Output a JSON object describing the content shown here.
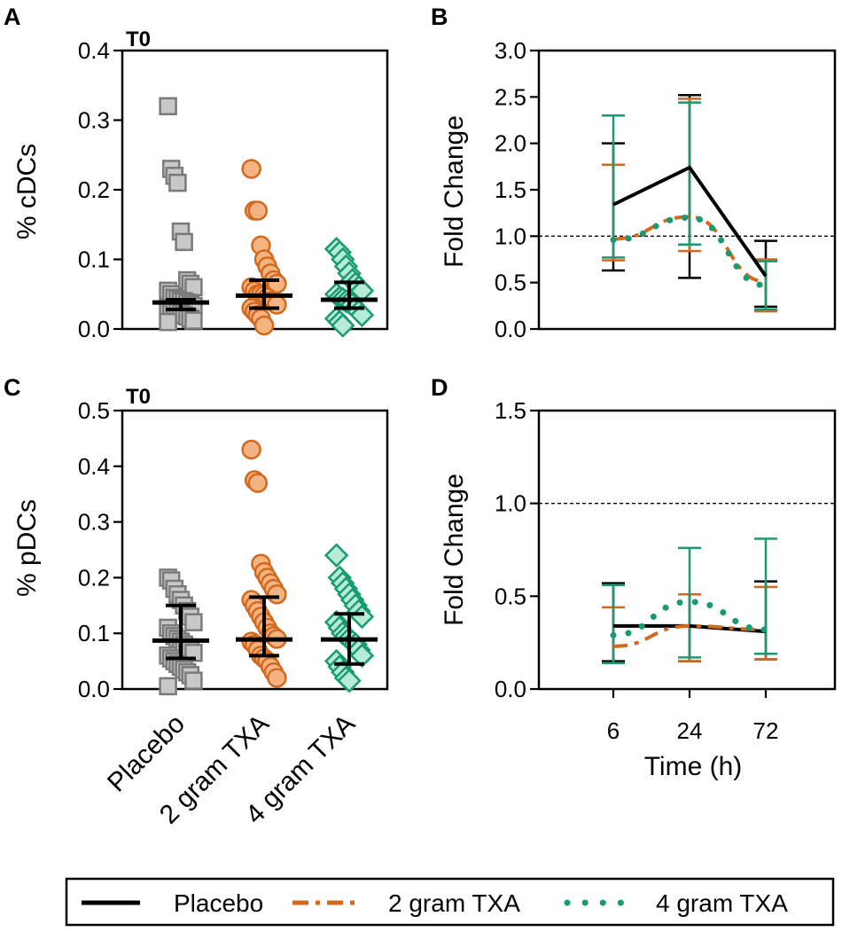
{
  "colors": {
    "placebo": "#000000",
    "placebo_fill": "#c8c8c8",
    "placebo_stroke": "#7a7a7a",
    "txa2": "#d2691e",
    "txa2_fill": "#f4b482",
    "txa4": "#1a9a73",
    "txa4_fill": "#b6ebd6"
  },
  "legend": {
    "items": [
      {
        "label": "Placebo",
        "style": "solid"
      },
      {
        "label": "2 gram TXA",
        "style": "dashed"
      },
      {
        "label": "4 gram TXA",
        "style": "dotted"
      }
    ]
  },
  "chart_data": [
    {
      "panel": "A",
      "type": "scatter",
      "annotation": "T0",
      "ylabel": "% cDCs",
      "ylim": [
        0,
        0.4
      ],
      "yticks": [
        0.0,
        0.1,
        0.2,
        0.3,
        0.4
      ],
      "ytick_labels": [
        "0.0",
        "0.1",
        "0.2",
        "0.3",
        "0.4"
      ],
      "categories": [
        "Placebo",
        "2 gram TXA",
        "4 gram TXA"
      ],
      "series": [
        {
          "name": "Placebo",
          "marker": "square",
          "median": 0.038,
          "err_low": 0.028,
          "err_high": 0.042,
          "points": [
            0.32,
            0.23,
            0.22,
            0.21,
            0.14,
            0.125,
            0.07,
            0.065,
            0.06,
            0.055,
            0.05,
            0.045,
            0.043,
            0.04,
            0.04,
            0.038,
            0.035,
            0.033,
            0.03,
            0.03,
            0.028,
            0.025,
            0.022,
            0.02,
            0.018,
            0.015,
            0.012,
            0.01
          ]
        },
        {
          "name": "2 gram TXA",
          "marker": "circle",
          "median": 0.048,
          "err_low": 0.03,
          "err_high": 0.07,
          "points": [
            0.23,
            0.17,
            0.17,
            0.12,
            0.1,
            0.09,
            0.08,
            0.07,
            0.065,
            0.06,
            0.055,
            0.05,
            0.05,
            0.048,
            0.045,
            0.04,
            0.04,
            0.035,
            0.03,
            0.025,
            0.02,
            0.015,
            0.005
          ]
        },
        {
          "name": "4 gram TXA",
          "marker": "diamond",
          "median": 0.042,
          "err_low": 0.03,
          "err_high": 0.067,
          "points": [
            0.115,
            0.11,
            0.1,
            0.09,
            0.08,
            0.07,
            0.065,
            0.06,
            0.055,
            0.05,
            0.045,
            0.043,
            0.04,
            0.038,
            0.035,
            0.03,
            0.025,
            0.02,
            0.015,
            0.01,
            0.005
          ]
        }
      ]
    },
    {
      "panel": "B",
      "type": "line",
      "ylabel": "Fold Change",
      "ylim": [
        0,
        3.0
      ],
      "yticks": [
        0.0,
        0.5,
        1.0,
        1.5,
        2.0,
        2.5,
        3.0
      ],
      "ytick_labels": [
        "0.0",
        "0.5",
        "1.0",
        "1.5",
        "2.0",
        "2.5",
        "3.0"
      ],
      "x": [
        6,
        24,
        72
      ],
      "reference_line": 1.0,
      "series": [
        {
          "name": "Placebo",
          "values": [
            1.34,
            1.74,
            0.57
          ],
          "err_low": [
            0.63,
            0.55,
            0.24
          ],
          "err_high": [
            2.0,
            2.52,
            0.95
          ]
        },
        {
          "name": "2 gram TXA",
          "values": [
            0.97,
            1.21,
            0.51
          ],
          "err_low": [
            0.74,
            0.84,
            0.19
          ],
          "err_high": [
            1.77,
            2.48,
            0.75
          ]
        },
        {
          "name": "4 gram TXA",
          "values": [
            0.96,
            1.2,
            0.47
          ],
          "err_low": [
            0.77,
            0.91,
            0.21
          ],
          "err_high": [
            2.3,
            2.44,
            0.73
          ]
        }
      ]
    },
    {
      "panel": "C",
      "type": "scatter",
      "annotation": "T0",
      "ylabel": "% pDCs",
      "ylim": [
        0,
        0.5
      ],
      "yticks": [
        0.0,
        0.1,
        0.2,
        0.3,
        0.4,
        0.5
      ],
      "ytick_labels": [
        "0.0",
        "0.1",
        "0.2",
        "0.3",
        "0.4",
        "0.5"
      ],
      "categories": [
        "Placebo",
        "2 gram TXA",
        "4 gram TXA"
      ],
      "series": [
        {
          "name": "Placebo",
          "marker": "square",
          "median": 0.087,
          "err_low": 0.055,
          "err_high": 0.15,
          "points": [
            0.2,
            0.195,
            0.18,
            0.17,
            0.16,
            0.15,
            0.14,
            0.13,
            0.12,
            0.11,
            0.1,
            0.095,
            0.09,
            0.085,
            0.08,
            0.075,
            0.07,
            0.065,
            0.06,
            0.055,
            0.05,
            0.045,
            0.04,
            0.035,
            0.03,
            0.025,
            0.015,
            0.005
          ]
        },
        {
          "name": "2 gram TXA",
          "marker": "circle",
          "median": 0.089,
          "err_low": 0.06,
          "err_high": 0.165,
          "points": [
            0.43,
            0.375,
            0.37,
            0.225,
            0.21,
            0.2,
            0.19,
            0.18,
            0.17,
            0.16,
            0.15,
            0.14,
            0.13,
            0.12,
            0.11,
            0.1,
            0.095,
            0.09,
            0.085,
            0.08,
            0.07,
            0.06,
            0.055,
            0.05,
            0.04,
            0.03,
            0.02
          ]
        },
        {
          "name": "4 gram TXA",
          "marker": "diamond",
          "median": 0.089,
          "err_low": 0.045,
          "err_high": 0.135,
          "points": [
            0.24,
            0.2,
            0.19,
            0.18,
            0.17,
            0.16,
            0.15,
            0.14,
            0.13,
            0.12,
            0.11,
            0.1,
            0.095,
            0.09,
            0.085,
            0.08,
            0.07,
            0.06,
            0.05,
            0.04,
            0.03,
            0.02,
            0.015
          ]
        }
      ]
    },
    {
      "panel": "D",
      "type": "line",
      "ylabel": "Fold Change",
      "xlabel": "Time (h)",
      "ylim": [
        0,
        1.5
      ],
      "yticks": [
        0.0,
        0.5,
        1.0,
        1.5
      ],
      "ytick_labels": [
        "0.0",
        "0.5",
        "1.0",
        "1.5"
      ],
      "x": [
        6,
        24,
        72
      ],
      "xtick_labels": [
        "6",
        "24",
        "72"
      ],
      "reference_line": 1.0,
      "series": [
        {
          "name": "Placebo",
          "values": [
            0.34,
            0.34,
            0.31
          ],
          "err_low": [
            0.15,
            0.15,
            0.16
          ],
          "err_high": [
            0.57,
            0.51,
            0.58
          ]
        },
        {
          "name": "2 gram TXA",
          "values": [
            0.23,
            0.34,
            0.32
          ],
          "err_low": [
            0.14,
            0.15,
            0.16
          ],
          "err_high": [
            0.44,
            0.51,
            0.55
          ]
        },
        {
          "name": "4 gram TXA",
          "values": [
            0.29,
            0.47,
            0.32
          ],
          "err_low": [
            0.14,
            0.17,
            0.19
          ],
          "err_high": [
            0.56,
            0.76,
            0.81
          ]
        }
      ]
    }
  ]
}
